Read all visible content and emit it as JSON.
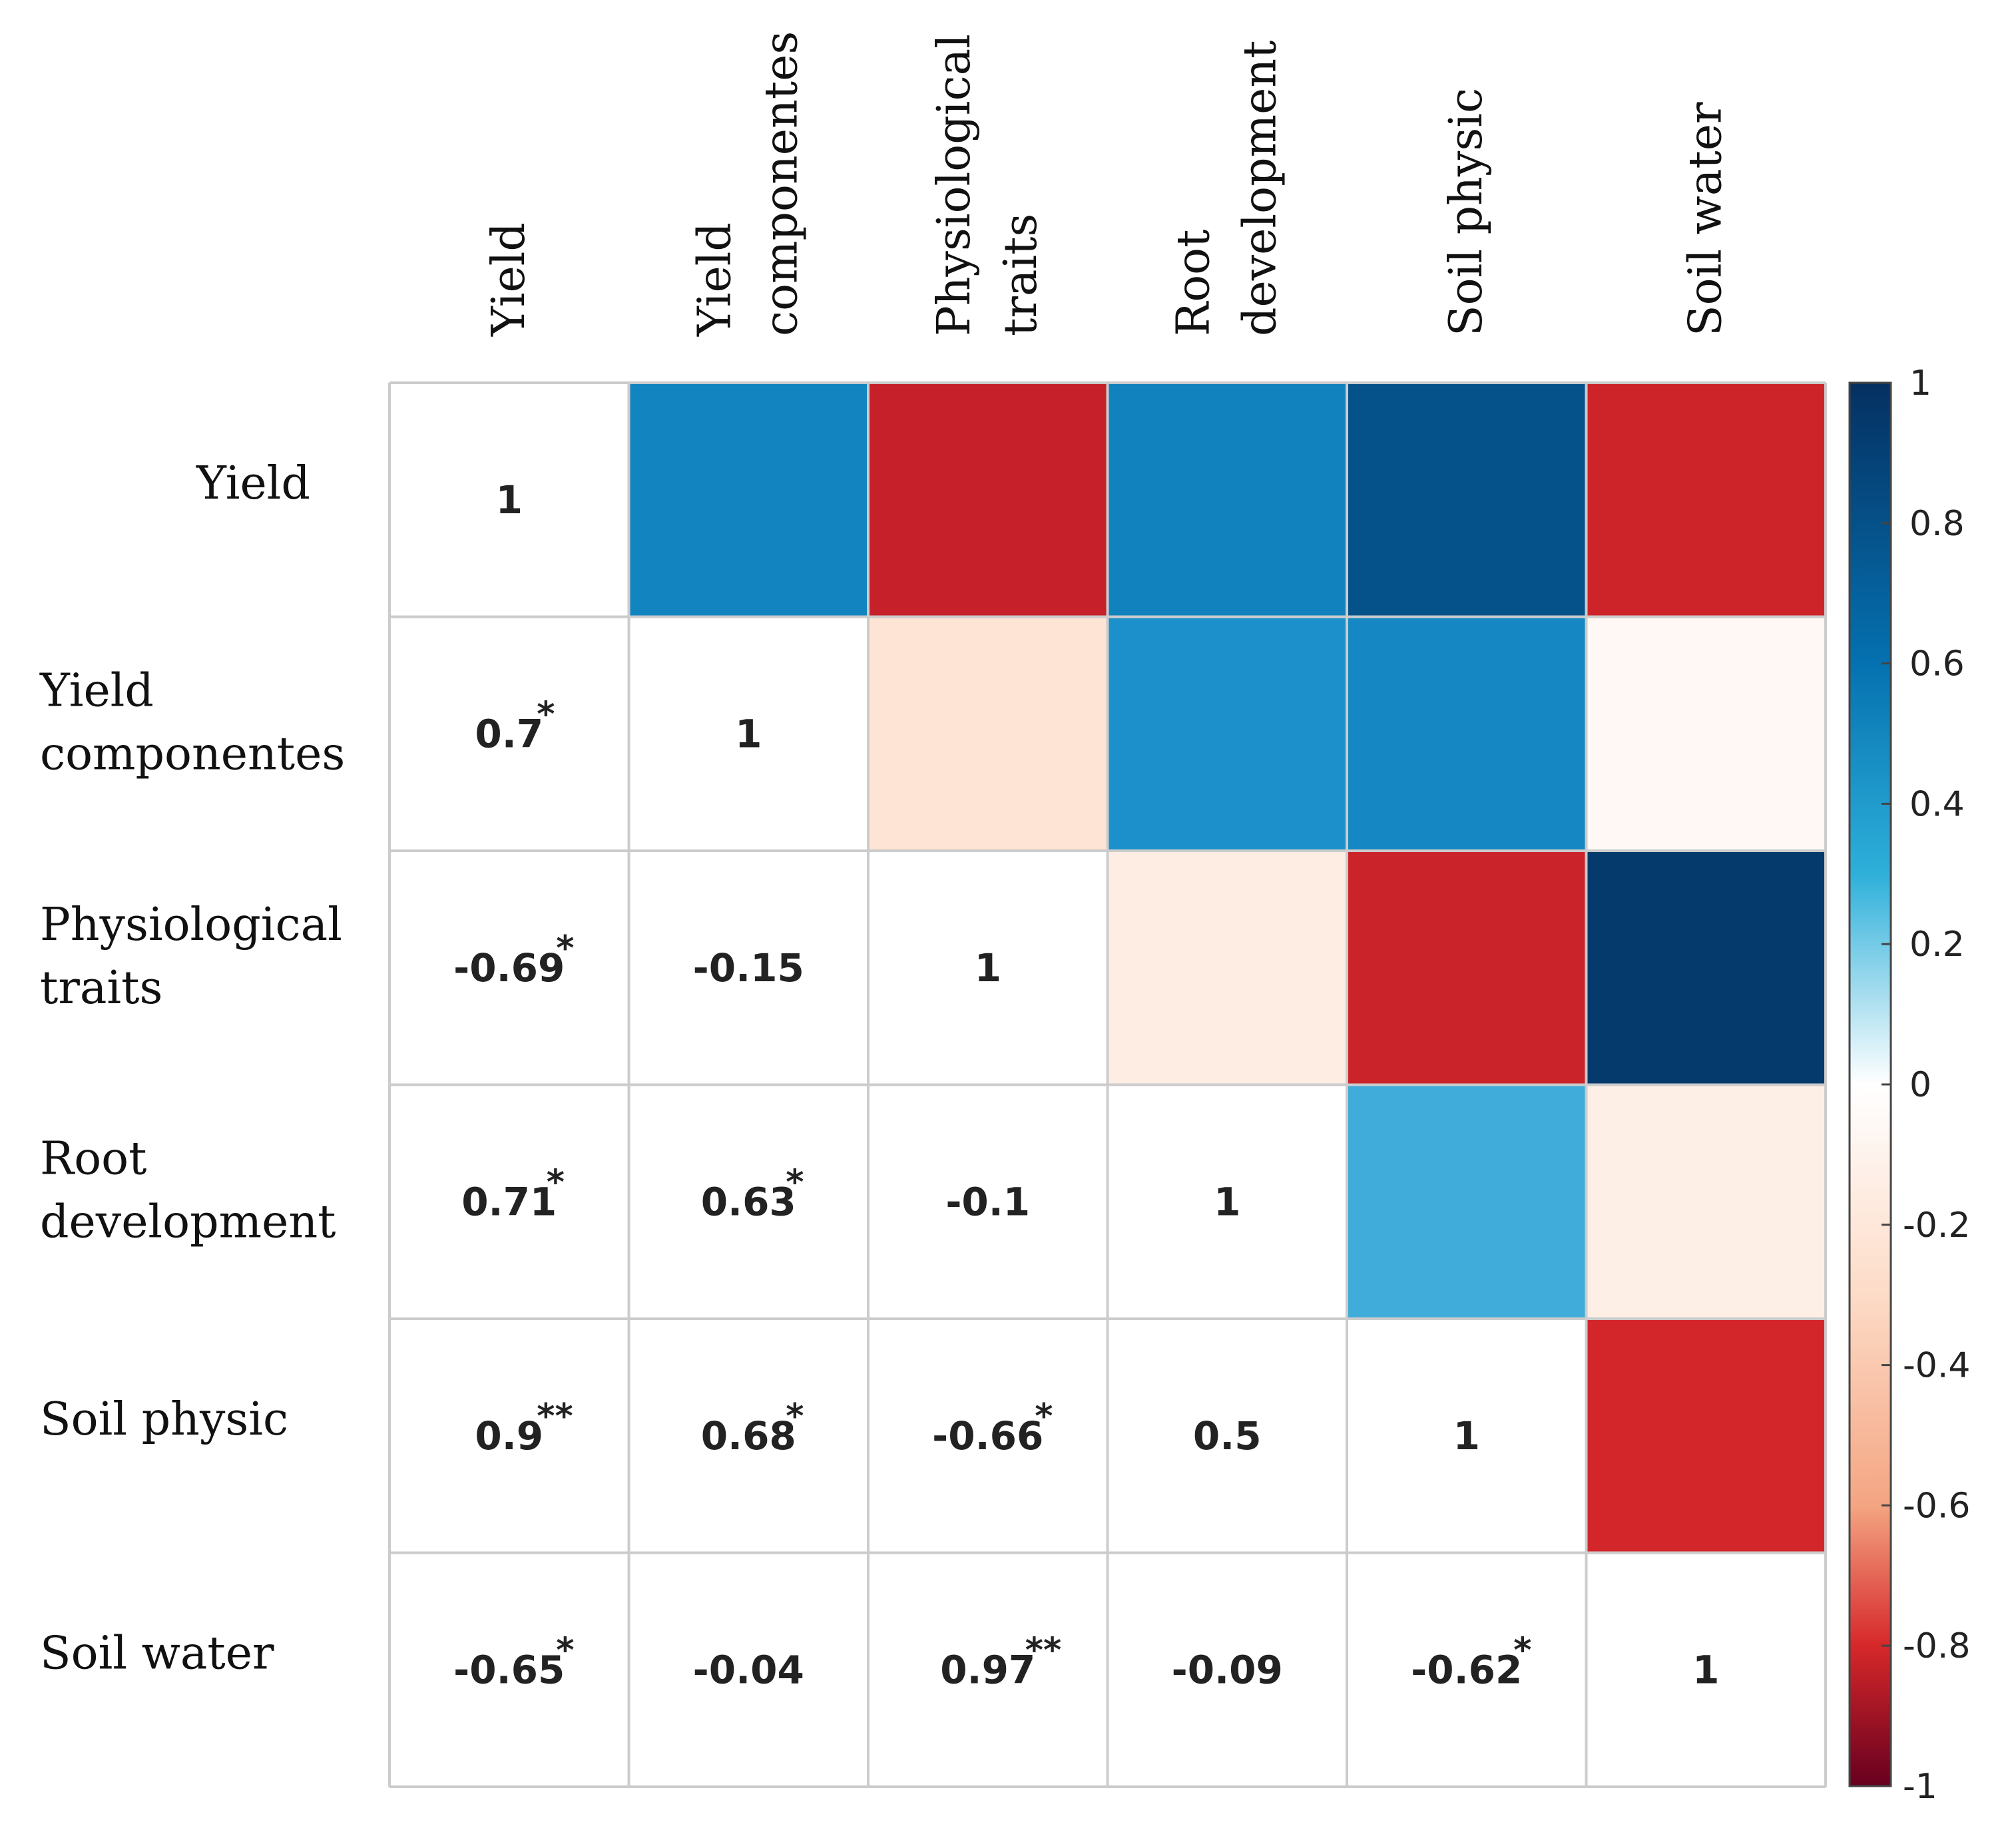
{
  "chart_data": {
    "type": "heatmap",
    "title": "",
    "variables": [
      {
        "label_lines": [
          "Yield"
        ]
      },
      {
        "label_lines": [
          "Yield",
          "componentes"
        ]
      },
      {
        "label_lines": [
          "Physiological",
          "traits"
        ]
      },
      {
        "label_lines": [
          "Root",
          "development"
        ]
      },
      {
        "label_lines": [
          "Soil physic"
        ]
      },
      {
        "label_lines": [
          "Soil water"
        ]
      }
    ],
    "matrix": [
      [
        1,
        0.7,
        -0.69,
        0.71,
        0.9,
        -0.65
      ],
      [
        0.7,
        1,
        -0.15,
        0.63,
        0.68,
        -0.04
      ],
      [
        -0.69,
        -0.15,
        1,
        -0.1,
        -0.66,
        0.97
      ],
      [
        0.71,
        0.63,
        -0.1,
        1,
        0.5,
        -0.09
      ],
      [
        0.9,
        0.68,
        -0.66,
        0.5,
        1,
        -0.62
      ],
      [
        -0.65,
        -0.04,
        0.97,
        -0.09,
        -0.62,
        1
      ]
    ],
    "lower_triangle_labels": [
      [
        {
          "text": "1",
          "sig": ""
        }
      ],
      [
        {
          "text": "0.7",
          "sig": "*"
        },
        {
          "text": "1",
          "sig": ""
        }
      ],
      [
        {
          "text": "-0.69",
          "sig": "*"
        },
        {
          "text": "-0.15",
          "sig": ""
        },
        {
          "text": "1",
          "sig": ""
        }
      ],
      [
        {
          "text": "0.71",
          "sig": "*"
        },
        {
          "text": "0.63",
          "sig": "*"
        },
        {
          "text": "-0.1",
          "sig": ""
        },
        {
          "text": "1",
          "sig": ""
        }
      ],
      [
        {
          "text": "0.9",
          "sig": "**"
        },
        {
          "text": "0.68",
          "sig": "*"
        },
        {
          "text": "-0.66",
          "sig": "*"
        },
        {
          "text": "0.5",
          "sig": ""
        },
        {
          "text": "1",
          "sig": ""
        }
      ],
      [
        {
          "text": "-0.65",
          "sig": "*"
        },
        {
          "text": "-0.04",
          "sig": ""
        },
        {
          "text": "0.97",
          "sig": "**"
        },
        {
          "text": "-0.09",
          "sig": ""
        },
        {
          "text": "-0.62",
          "sig": "*"
        },
        {
          "text": "1",
          "sig": ""
        }
      ]
    ],
    "upper_triangle": "colored cells",
    "colorbar": {
      "range": [
        -1,
        1
      ],
      "ticks": [
        "1",
        "0.8",
        "0.6",
        "0.4",
        "0.2",
        "0",
        "-0.2",
        "-0.4",
        "-0.6",
        "-0.8",
        "-1"
      ],
      "tick_values": [
        1,
        0.8,
        0.6,
        0.4,
        0.2,
        0,
        -0.2,
        -0.4,
        -0.6,
        -0.8,
        -1
      ],
      "colors": {
        "neg_end": "#67001f",
        "neg_strong": "#d6282a",
        "neg_mid": "#f4a582",
        "neg_light": "#fddbc7",
        "zero": "#ffffff",
        "pos_light": "#d1e5f0",
        "pos_mid": "#2eb0da",
        "pos_strong": "#0571b0",
        "pos_end": "#053061"
      }
    },
    "grid_color": "#cccccc"
  }
}
